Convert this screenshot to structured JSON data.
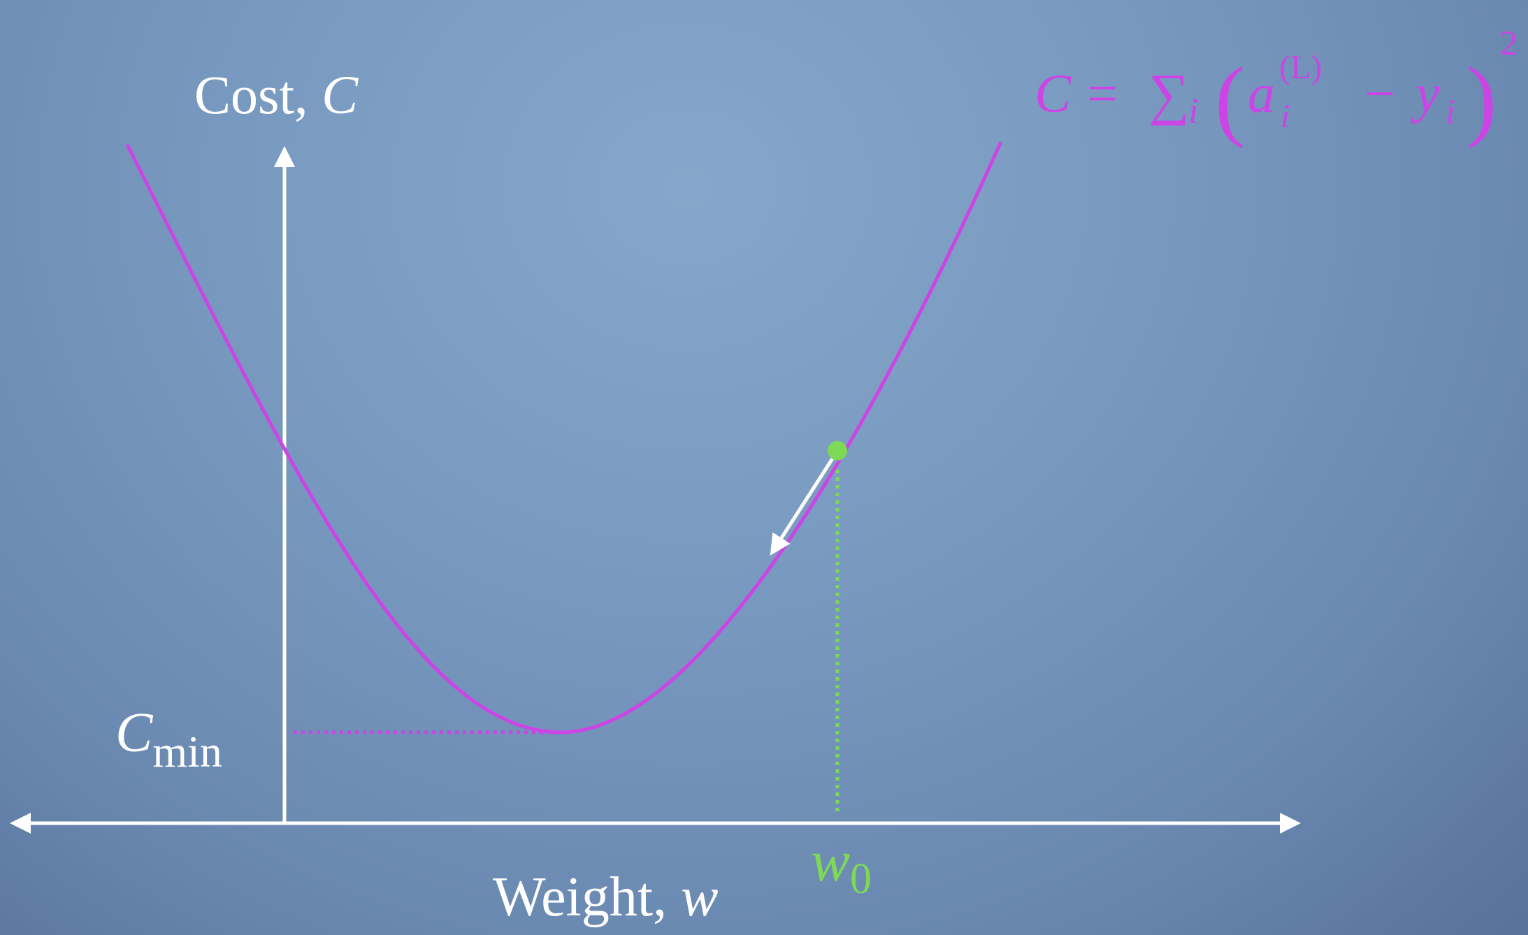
{
  "y_axis": {
    "label_prefix": "Cost, ",
    "label_var": "C"
  },
  "x_axis": {
    "label_prefix": "Weight, ",
    "label_var": "w"
  },
  "min_label": {
    "base": "C",
    "sub": "min"
  },
  "w0_label": {
    "base": "w",
    "sub": "0"
  },
  "formula": {
    "lhs": "C",
    "equals": "=",
    "sum": "∑",
    "sum_index": "i",
    "open_paren": "(",
    "a": "a",
    "a_sub": "i",
    "a_sup": "(L)",
    "minus": "−",
    "y": "y",
    "y_sub": "i",
    "close_paren": ")",
    "exponent": "2"
  },
  "colors": {
    "curve": "#cc44e6",
    "point": "#7ed957",
    "axes": "#ffffff",
    "formula": "#cc44e6"
  }
}
